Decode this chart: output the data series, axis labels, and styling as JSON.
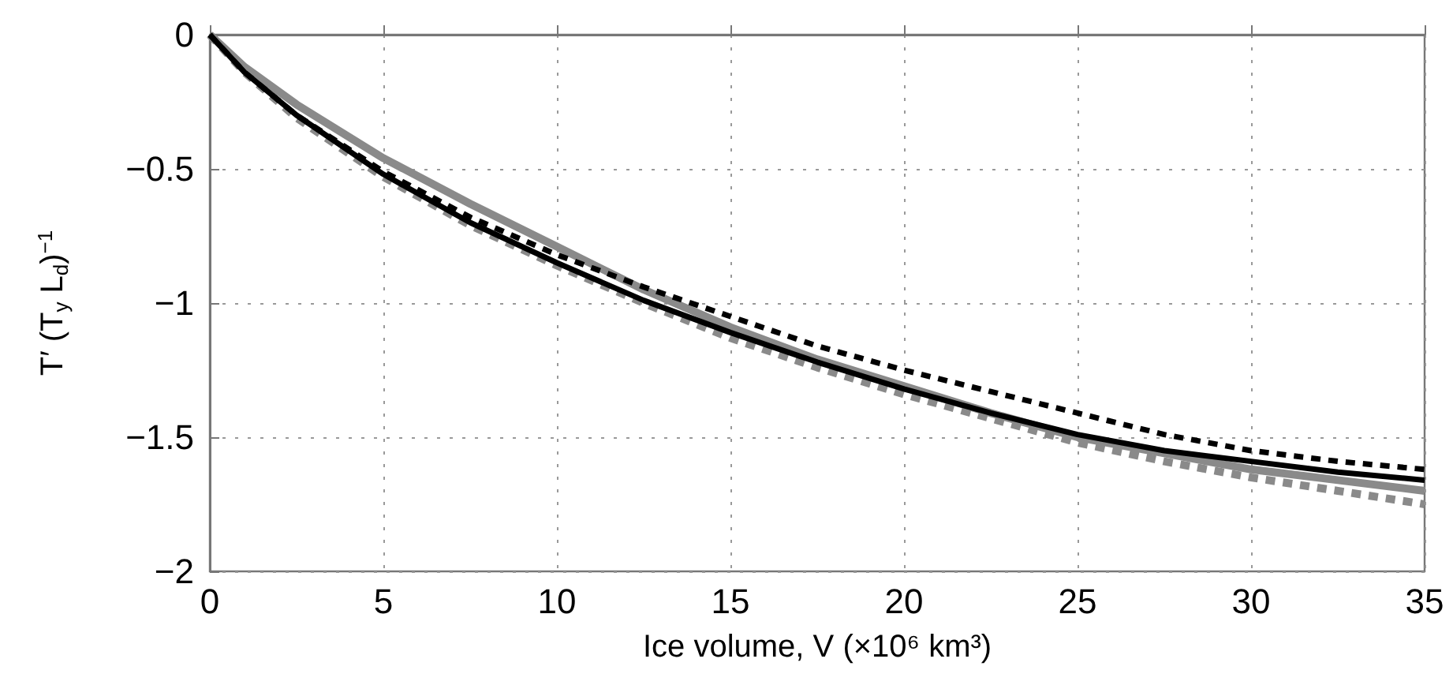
{
  "chart_data": {
    "type": "line",
    "xlabel": "Ice volume, V (×10⁶ km³)",
    "ylabel": "T′ (T$_{y}$ L$_{d}$)$^{−1}$",
    "x": [
      0,
      1,
      2.5,
      5,
      7.5,
      10,
      12.5,
      15,
      17.5,
      20,
      22.5,
      25,
      27.5,
      30,
      32.5,
      35
    ],
    "series": [
      {
        "color": "#8a8a8a",
        "line_style": "solid",
        "values": [
          0,
          -0.12,
          -0.26,
          -0.46,
          -0.63,
          -0.79,
          -0.95,
          -1.09,
          -1.21,
          -1.31,
          -1.41,
          -1.5,
          -1.56,
          -1.62,
          -1.66,
          -1.7
        ]
      },
      {
        "color": "#8a8a8a",
        "line_style": "dashed",
        "values": [
          0,
          -0.14,
          -0.31,
          -0.53,
          -0.71,
          -0.86,
          -1.0,
          -1.13,
          -1.24,
          -1.34,
          -1.43,
          -1.52,
          -1.59,
          -1.65,
          -1.7,
          -1.75
        ]
      },
      {
        "color": "#000000",
        "line_style": "solid",
        "values": [
          0,
          -0.14,
          -0.3,
          -0.52,
          -0.7,
          -0.85,
          -0.99,
          -1.11,
          -1.22,
          -1.32,
          -1.41,
          -1.49,
          -1.55,
          -1.59,
          -1.63,
          -1.66
        ]
      },
      {
        "color": "#000000",
        "line_style": "dashed",
        "values": [
          0,
          -0.14,
          -0.3,
          -0.51,
          -0.68,
          -0.82,
          -0.94,
          -1.05,
          -1.16,
          -1.25,
          -1.33,
          -1.41,
          -1.49,
          -1.55,
          -1.59,
          -1.62
        ]
      }
    ],
    "xlim": [
      0,
      35
    ],
    "xticks": [
      0,
      5,
      10,
      15,
      20,
      25,
      30,
      35
    ],
    "ylim": [
      -2,
      0
    ],
    "yticks": [
      -2,
      -1.5,
      -1,
      -0.5,
      0
    ],
    "grid": true,
    "marker": "none"
  }
}
